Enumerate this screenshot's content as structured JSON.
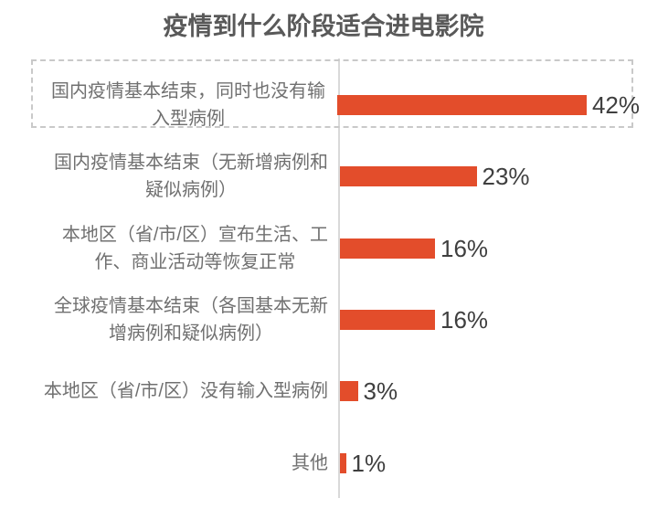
{
  "title": "疫情到什么阶段适合进电影院",
  "colors": {
    "bar": "#e34d2b",
    "axis": "#d9d9d9",
    "title_text": "#595959",
    "label_text": "#707070",
    "value_text": "#3f3f3f",
    "highlight_border": "#c9c9c9",
    "background": "#ffffff"
  },
  "chart_data": {
    "type": "bar",
    "orientation": "horizontal",
    "title": "疫情到什么阶段适合进电影院",
    "categories": [
      "国内疫情基本结束，同时也没有输入型病例",
      "国内疫情基本结束（无新增病例和疑似病例）",
      "本地区（省/市/区）宣布生活、工作、商业活动等恢复正常",
      "全球疫情基本结束（各国基本无新增病例和疑似病例）",
      "本地区（省/市/区）没有输入型病例",
      "其他"
    ],
    "category_lines": [
      [
        "国内疫情基本结束，同时也没有输",
        "入型病例"
      ],
      [
        "国内疫情基本结束（无新增病例和",
        "疑似病例）"
      ],
      [
        "本地区（省/市/区）宣布生活、工",
        "作、商业活动等恢复正常"
      ],
      [
        "全球疫情基本结束（各国基本无新",
        "增病例和疑似病例）"
      ],
      [
        "本地区（省/市/区）没有输入型病例"
      ],
      [
        "其他"
      ]
    ],
    "values": [
      42,
      23,
      16,
      16,
      3,
      1
    ],
    "value_labels": [
      "42%",
      "23%",
      "16%",
      "16%",
      "3%",
      "1%"
    ],
    "unit": "%",
    "xlim": [
      0,
      49
    ],
    "highlighted_index": 0,
    "legend": false,
    "gridlines": false
  }
}
